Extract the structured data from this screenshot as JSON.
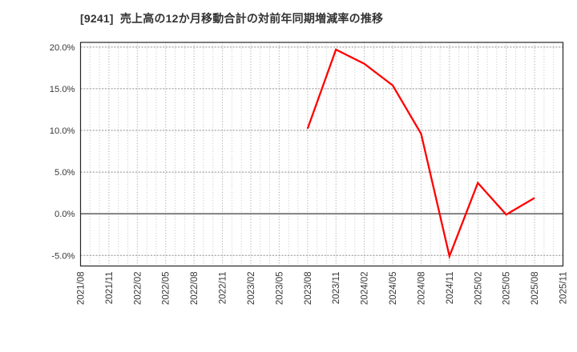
{
  "page": {
    "background_color": "#ffffff"
  },
  "chart_data": {
    "type": "line",
    "title": "[9241]  売上高の12か月移動合計の対前年同期増減率の推移",
    "stock_code": "9241",
    "x_range": [
      "2021/08",
      "2025/11"
    ],
    "x_minor_unit": "month",
    "x_major_unit_months": 3,
    "x_tick_labels": [
      "2021/08",
      "2021/11",
      "2022/02",
      "2022/05",
      "2022/08",
      "2022/11",
      "2023/02",
      "2023/05",
      "2023/08",
      "2023/11",
      "2024/02",
      "2024/05",
      "2024/08",
      "2024/11",
      "2025/02",
      "2025/05",
      "2025/08",
      "2025/11"
    ],
    "y_ticks": [
      20,
      15,
      10,
      5,
      0,
      -5
    ],
    "y_tick_labels": [
      "20.0%",
      "15.0%",
      "10.0%",
      "5.0%",
      "0.0%",
      "-5.0%"
    ],
    "ylim": [
      -6.27,
      20.56
    ],
    "grid": {
      "vertical": "dotted",
      "horizontal": "dashed",
      "zero_line": "solid"
    },
    "legend": "none",
    "series": [
      {
        "x": [
          "2023/08",
          "2023/11",
          "2024/02",
          "2024/05",
          "2024/08",
          "2024/11",
          "2025/02",
          "2025/05",
          "2025/08"
        ],
        "values": [
          10.2,
          19.7,
          18.0,
          15.4,
          9.6,
          -5.1,
          3.7,
          -0.1,
          1.9
        ]
      }
    ],
    "colors": {
      "line": "#ff0000",
      "grid_minor": "#bdbdbd",
      "grid_major": "#9a9a9a",
      "grid_horizontal": "#949494",
      "zero_line": "#4d4d4d",
      "border": "#262626",
      "tick_label": "#383838",
      "title": "#333333"
    }
  }
}
